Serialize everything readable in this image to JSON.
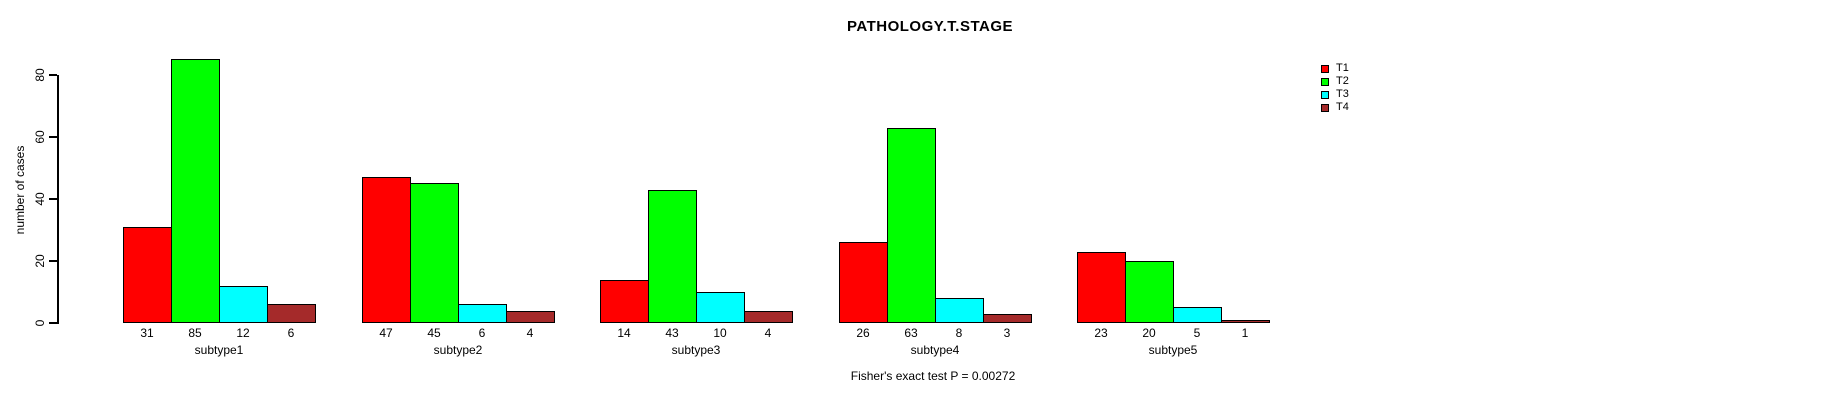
{
  "title": "PATHOLOGY.T.STAGE",
  "ylabel": "number of cases",
  "footer": "Fisher's exact test P = 0.00272",
  "legend": {
    "position": "right",
    "items": [
      {
        "label": "T1",
        "color": "#FF0000"
      },
      {
        "label": "T2",
        "color": "#00FF00"
      },
      {
        "label": "T3",
        "color": "#00FFFF"
      },
      {
        "label": "T4",
        "color": "#A52A2A"
      }
    ]
  },
  "chart_data": {
    "type": "bar",
    "title": "PATHOLOGY.T.STAGE",
    "xlabel": "",
    "ylabel": "number of cases",
    "categories": [
      "subtype1",
      "subtype2",
      "subtype3",
      "subtype4",
      "subtype5"
    ],
    "series": [
      {
        "name": "T1",
        "color": "#FF0000",
        "values": [
          31,
          47,
          14,
          26,
          23
        ]
      },
      {
        "name": "T2",
        "color": "#00FF00",
        "values": [
          85,
          45,
          43,
          63,
          20
        ]
      },
      {
        "name": "T3",
        "color": "#00FFFF",
        "values": [
          12,
          6,
          10,
          8,
          5
        ]
      },
      {
        "name": "T4",
        "color": "#A52A2A",
        "values": [
          6,
          4,
          4,
          3,
          1
        ]
      }
    ],
    "bar_value_labels_shown": true,
    "yticks": [
      0,
      20,
      40,
      60,
      80
    ],
    "ylim": [
      0,
      85
    ],
    "grid": false,
    "legend_position": "right",
    "annotation": "Fisher's exact test P = 0.00272"
  }
}
